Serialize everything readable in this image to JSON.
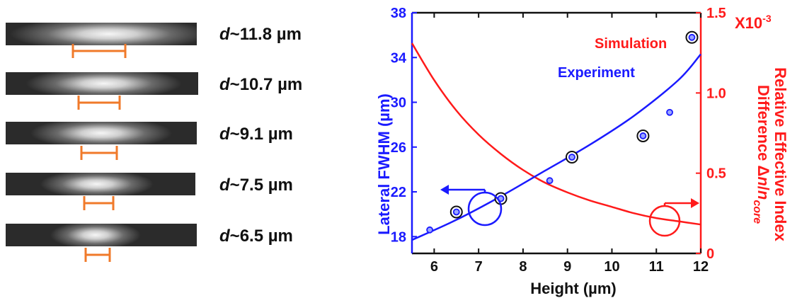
{
  "profiles": [
    {
      "prefix": "d",
      "label": "~11.8 µm"
    },
    {
      "prefix": "d",
      "label": "~10.7 µm"
    },
    {
      "prefix": "d",
      "label": "~9.1 µm"
    },
    {
      "prefix": "d",
      "label": "~7.5 µm"
    },
    {
      "prefix": "d",
      "label": "~6.5 µm"
    }
  ],
  "chart_data": {
    "type": "scatter",
    "xlabel": "Height (µm)",
    "ylabel_left": "Lateral FWHM (µm)",
    "ylabel_right_line1": "Relative Effective Index",
    "ylabel_right_line2_prefix": "Difference Δ",
    "ylabel_right_line2_n": "n",
    "ylabel_right_line2_slash": "/",
    "ylabel_right_line2_n2": "n",
    "ylabel_right_line2_sub": "core",
    "right_multiplier": "X10",
    "right_multiplier_exp": "-3",
    "xlim": [
      5.5,
      12
    ],
    "ylim_left": [
      16.5,
      38
    ],
    "ylim_right": [
      0,
      1.5
    ],
    "x_ticks": [
      "6",
      "7",
      "8",
      "9",
      "10",
      "11",
      "12"
    ],
    "y_left_ticks": [
      "18",
      "22",
      "26",
      "30",
      "34",
      "38"
    ],
    "y_right_ticks": [
      "0",
      "0.5",
      "1.0",
      "1.5"
    ],
    "legend": [
      {
        "label": "Simulation",
        "color": "#ff1a1a"
      },
      {
        "label": "Experiment",
        "color": "#1a1aff"
      }
    ],
    "experiment_points": [
      {
        "x": 5.9,
        "y": 18.6,
        "circled": false
      },
      {
        "x": 6.5,
        "y": 20.2,
        "circled": true
      },
      {
        "x": 7.5,
        "y": 21.4,
        "circled": true
      },
      {
        "x": 8.6,
        "y": 23.0,
        "circled": false
      },
      {
        "x": 9.1,
        "y": 25.1,
        "circled": true
      },
      {
        "x": 10.7,
        "y": 27.0,
        "circled": true
      },
      {
        "x": 11.3,
        "y": 29.1,
        "circled": false
      },
      {
        "x": 11.8,
        "y": 35.8,
        "circled": true
      }
    ],
    "experiment_fit": {
      "x": [
        5.5,
        6.5,
        7.5,
        8.5,
        9.5,
        10.5,
        11.5,
        12
      ],
      "y": [
        17.7,
        19.5,
        21.6,
        23.9,
        26.2,
        28.8,
        32.0,
        34.3
      ]
    },
    "simulation_curve": {
      "x": [
        5.5,
        6.0,
        6.5,
        7.0,
        7.5,
        8.0,
        8.5,
        9.0,
        9.5,
        10.0,
        10.5,
        11.0,
        11.5,
        12.0
      ],
      "y": [
        1.31,
        1.08,
        0.89,
        0.74,
        0.62,
        0.52,
        0.44,
        0.38,
        0.33,
        0.29,
        0.25,
        0.22,
        0.2,
        0.18
      ]
    },
    "colors": {
      "left_axis": "#1a1aff",
      "right_axis": "#ff1a1a",
      "marker_ring": "#111111",
      "bar": "#f07a2a"
    }
  }
}
